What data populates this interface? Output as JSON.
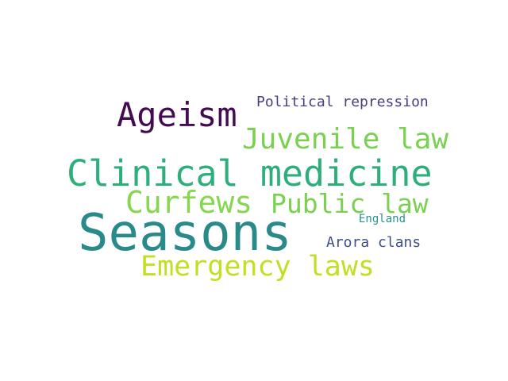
{
  "words": [
    {
      "text": "Seasons",
      "color": "#2a8a8a"
    },
    {
      "text": "Clinical medicine",
      "color": "#2eae7a"
    },
    {
      "text": "Ageism",
      "color": "#440a52"
    },
    {
      "text": "Juvenile law",
      "color": "#7ad151"
    },
    {
      "text": "Curfews",
      "color": "#86d64f"
    },
    {
      "text": "Public law",
      "color": "#7ad151"
    },
    {
      "text": "Emergency laws",
      "color": "#c2df23"
    },
    {
      "text": "Political repression",
      "color": "#46407f"
    },
    {
      "text": "Arora clans",
      "color": "#3f4e8a"
    },
    {
      "text": "England",
      "color": "#2a8f8f"
    }
  ]
}
